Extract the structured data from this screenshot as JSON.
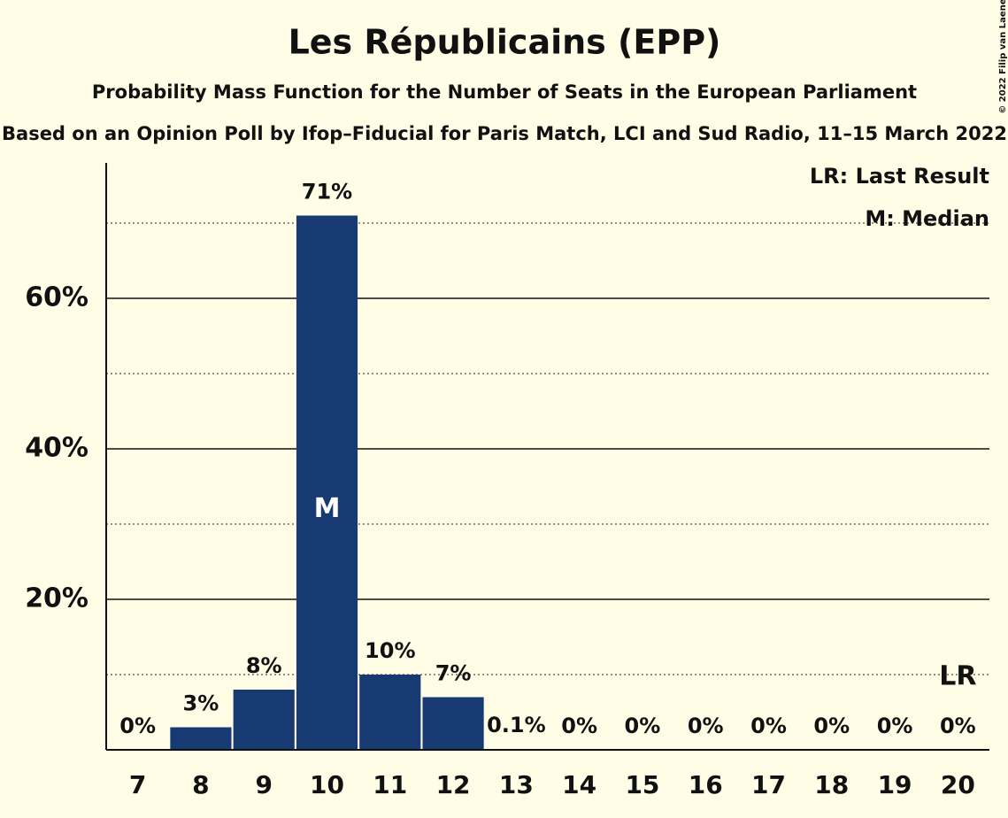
{
  "chart_data": {
    "type": "bar",
    "title": "Les Républicains (EPP)",
    "subtitle": "Probability Mass Function for the Number of Seats in the European Parliament",
    "source": "Based on an Opinion Poll by Ifop–Fiducial for Paris Match, LCI and Sud Radio, 11–15 March 2022",
    "copyright": "© 2022 Filip van Laenen",
    "categories": [
      "7",
      "8",
      "9",
      "10",
      "11",
      "12",
      "13",
      "14",
      "15",
      "16",
      "17",
      "18",
      "19",
      "20"
    ],
    "values": [
      0,
      3,
      8,
      71,
      10,
      7,
      0.1,
      0,
      0,
      0,
      0,
      0,
      0,
      0
    ],
    "value_labels": [
      "0%",
      "3%",
      "8%",
      "71%",
      "10%",
      "7%",
      "0.1%",
      "0%",
      "0%",
      "0%",
      "0%",
      "0%",
      "0%",
      "0%"
    ],
    "color": "#173a73",
    "ylim": [
      0,
      78
    ],
    "yticks": [
      {
        "value": 20,
        "label": "20%"
      },
      {
        "value": 40,
        "label": "40%"
      },
      {
        "value": 60,
        "label": "60%"
      }
    ],
    "minor_yticks": [
      10,
      30,
      50,
      70
    ],
    "grid": true,
    "median_index": 3,
    "median_label": "M",
    "last_result_index": 13,
    "last_result_label": "LR",
    "legend": [
      "LR: Last Result",
      "M: Median"
    ],
    "legend_position": "top-right"
  }
}
